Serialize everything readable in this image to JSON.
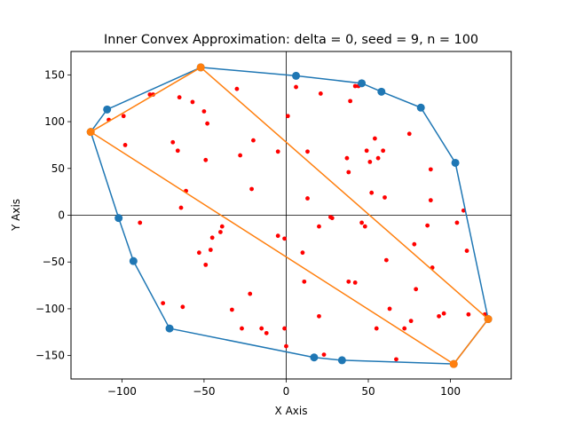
{
  "chart_data": {
    "type": "scatter",
    "title": "Inner Convex Approximation: delta = 0, seed = 9, n = 100",
    "xlabel": "X Axis",
    "ylabel": "Y Axis",
    "xlim": [
      -131,
      137
    ],
    "ylim": [
      -175,
      175
    ],
    "xticks": [
      -100,
      -50,
      0,
      50,
      100
    ],
    "yticks": [
      -150,
      -100,
      -50,
      0,
      50,
      100,
      150
    ],
    "zero_lines": true,
    "grid": false,
    "colors": {
      "points": "#ff0000",
      "hull": "#1f77b4",
      "inner": "#ff7f0e",
      "zero_lines": "#000000"
    },
    "points": [
      [
        -83,
        129
      ],
      [
        -81,
        129
      ],
      [
        -108,
        102
      ],
      [
        -99,
        106
      ],
      [
        -98,
        75
      ],
      [
        -65,
        126
      ],
      [
        -57,
        121
      ],
      [
        -50,
        111
      ],
      [
        -48,
        98
      ],
      [
        -69,
        78
      ],
      [
        -66,
        69
      ],
      [
        -30,
        135
      ],
      [
        6,
        137
      ],
      [
        21,
        130
      ],
      [
        39,
        122
      ],
      [
        -28,
        64
      ],
      [
        -20,
        80
      ],
      [
        -5,
        68
      ],
      [
        1,
        106
      ],
      [
        -49,
        59
      ],
      [
        -21,
        28
      ],
      [
        -61,
        26
      ],
      [
        -64,
        8
      ],
      [
        -89,
        -8
      ],
      [
        -45,
        -24
      ],
      [
        -40,
        -18
      ],
      [
        -39,
        -12
      ],
      [
        -46,
        -37
      ],
      [
        -53,
        -40
      ],
      [
        -49,
        -53
      ],
      [
        -75,
        -94
      ],
      [
        -63,
        -98
      ],
      [
        -33,
        -101
      ],
      [
        -22,
        -84
      ],
      [
        -27,
        -121
      ],
      [
        -15,
        -121
      ],
      [
        -12,
        -126
      ],
      [
        -5,
        -22
      ],
      [
        -1,
        -25
      ],
      [
        -1,
        -121
      ],
      [
        0,
        -140
      ],
      [
        13,
        68
      ],
      [
        13,
        18
      ],
      [
        10,
        -40
      ],
      [
        11,
        -71
      ],
      [
        20,
        -12
      ],
      [
        27,
        -2
      ],
      [
        28,
        -3
      ],
      [
        20,
        -108
      ],
      [
        23,
        -149
      ],
      [
        42,
        138
      ],
      [
        44,
        138
      ],
      [
        37,
        61
      ],
      [
        38,
        46
      ],
      [
        49,
        69
      ],
      [
        51,
        57
      ],
      [
        54,
        82
      ],
      [
        56,
        61
      ],
      [
        59,
        69
      ],
      [
        52,
        24
      ],
      [
        60,
        19
      ],
      [
        46,
        -8
      ],
      [
        48,
        -12
      ],
      [
        38,
        -71
      ],
      [
        42,
        -72
      ],
      [
        61,
        -48
      ],
      [
        63,
        -100
      ],
      [
        55,
        -121
      ],
      [
        67,
        -154
      ],
      [
        72,
        -121
      ],
      [
        76,
        -113
      ],
      [
        78,
        -31
      ],
      [
        79,
        -79
      ],
      [
        75,
        87
      ],
      [
        86,
        -11
      ],
      [
        88,
        49
      ],
      [
        88,
        16
      ],
      [
        89,
        -56
      ],
      [
        93,
        -108
      ],
      [
        96,
        -105
      ],
      [
        104,
        -8
      ],
      [
        108,
        5
      ],
      [
        110,
        -38
      ],
      [
        111,
        -106
      ],
      [
        121,
        -106
      ]
    ],
    "hull": [
      [
        -109,
        113
      ],
      [
        -52,
        158
      ],
      [
        6,
        149
      ],
      [
        46,
        141
      ],
      [
        58,
        132
      ],
      [
        82,
        115
      ],
      [
        103,
        56
      ],
      [
        123,
        -111
      ],
      [
        102,
        -159
      ],
      [
        34,
        -155
      ],
      [
        17,
        -152
      ],
      [
        -71,
        -121
      ],
      [
        -93,
        -49
      ],
      [
        -102,
        -3
      ],
      [
        -119,
        89
      ],
      [
        -109,
        113
      ]
    ],
    "inner": [
      [
        -52,
        158
      ],
      [
        123,
        -111
      ],
      [
        102,
        -159
      ],
      [
        -119,
        89
      ],
      [
        -52,
        158
      ]
    ]
  }
}
